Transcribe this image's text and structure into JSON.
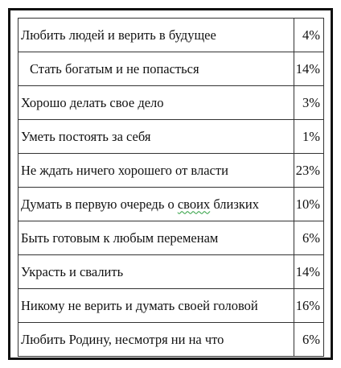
{
  "rows": [
    {
      "label": "Любить людей и верить в будущее",
      "value": "4%"
    },
    {
      "label": "Стать богатым и не попасться",
      "value": "14%"
    },
    {
      "label": "Хорошо делать свое дело",
      "value": "3%"
    },
    {
      "label": "Уметь постоять за себя",
      "value": "1%"
    },
    {
      "label": "Не ждать ничего хорошего от власти",
      "value": "23%"
    },
    {
      "label_before": "Думать в первую очередь о ",
      "label_marked": "своих",
      "label_after": " близких",
      "value": "10%"
    },
    {
      "label": "Быть готовым к любым переменам",
      "value": "6%"
    },
    {
      "label": "Украсть и свалить",
      "value": "14%"
    },
    {
      "label": "Никому не верить и думать своей головой",
      "value": "16%"
    },
    {
      "label": "Любить Родину, несмотря ни на что",
      "value": "6%"
    }
  ],
  "colors": {
    "border": "#333333",
    "text": "#111111",
    "spellcheck_underline": "#2a9d3c"
  }
}
